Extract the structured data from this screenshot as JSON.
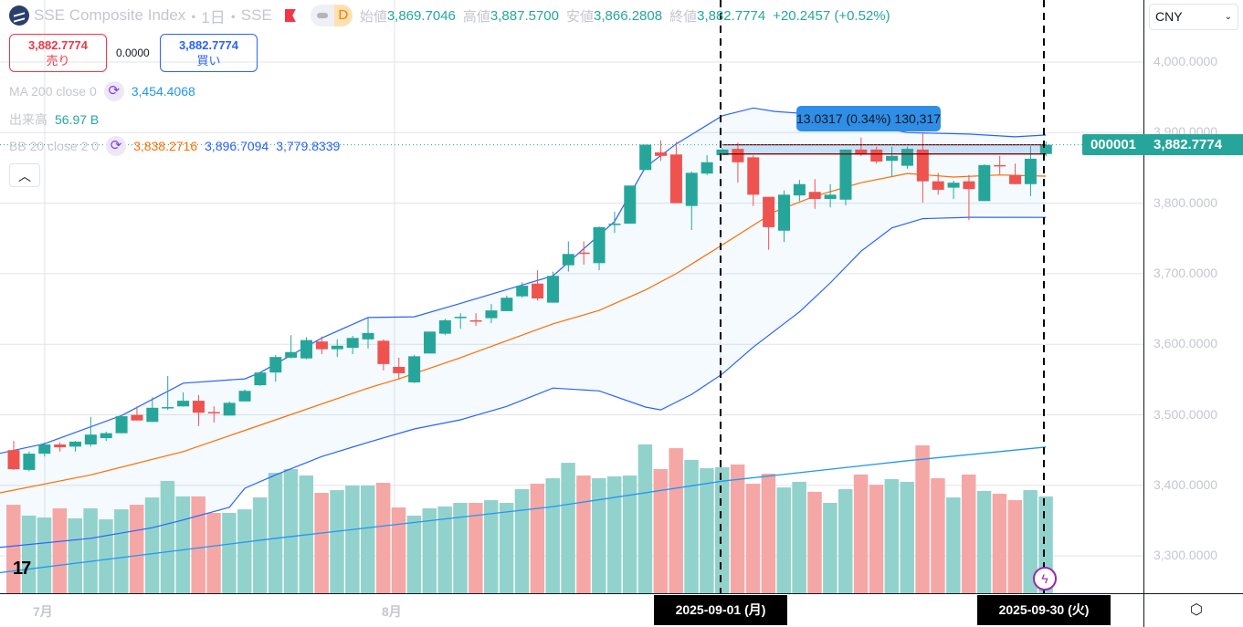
{
  "header": {
    "title": "SSE Composite Index",
    "interval": "1日",
    "exchange": "SSE",
    "badge": "D",
    "sep": "・",
    "open_label": "始値",
    "open": "3,869.7046",
    "high_label": "高値",
    "high": "3,887.5700",
    "low_label": "安値",
    "low": "3,866.2808",
    "close_label": "終値",
    "close": "3,882.7774",
    "change": "+20.2457 (+0.52%)"
  },
  "trade": {
    "sell_price": "3,882.7774",
    "sell_label": "売り",
    "spread": "0.0000",
    "buy_price": "3,882.7774",
    "buy_label": "買い"
  },
  "indicators": {
    "ma_name": "MA 200 close 0",
    "ma_value": "3,454.4068",
    "vol_name": "出来高",
    "vol_value": "56.97 B",
    "bb_name": "BB 20 close 2 0",
    "bb_mid": "3,838.2716",
    "bb_upper": "3,896.7094",
    "bb_lower": "3,779.8339"
  },
  "currency": "CNY",
  "price_axis": [
    "4,000.0000",
    "3,900.0000",
    "3,800.0000",
    "3,700.0000",
    "3,600.0000",
    "3,500.0000",
    "3,400.0000",
    "3,300.0000"
  ],
  "last_price": {
    "symbol": "000001",
    "value": "3,882.7774"
  },
  "measure": {
    "text": "13.0317 (0.34%) 130,317",
    "from": 3869.7457,
    "to": 3882.7774,
    "start_bar": 46,
    "end_bar": 67
  },
  "time_axis": {
    "jul": "7月",
    "aug": "8月",
    "cursor_start": "2025-09-01 (月)",
    "cursor_end": "2025-09-30 (火)"
  },
  "colors": {
    "up": "#26a69a",
    "down": "#ef5350",
    "bb": "#2962ff",
    "mid": "#ff6d00",
    "ma": "#2196f3"
  },
  "chart_data": {
    "type": "candlestick",
    "title": "SSE Composite Index 1D",
    "ylim": [
      3250,
      4080
    ],
    "ohlc": [
      [
        3450,
        3463,
        3422,
        3423
      ],
      [
        3422,
        3448,
        3420,
        3445
      ],
      [
        3445,
        3461,
        3441,
        3458
      ],
      [
        3458,
        3461,
        3448,
        3454
      ],
      [
        3455,
        3463,
        3448,
        3462
      ],
      [
        3458,
        3497,
        3455,
        3472
      ],
      [
        3467,
        3476,
        3463,
        3474
      ],
      [
        3474,
        3500,
        3474,
        3498
      ],
      [
        3500,
        3512,
        3492,
        3492
      ],
      [
        3490,
        3525,
        3490,
        3510
      ],
      [
        3510,
        3555,
        3507,
        3511
      ],
      [
        3512,
        3532,
        3512,
        3520
      ],
      [
        3520,
        3528,
        3484,
        3503
      ],
      [
        3504,
        3512,
        3489,
        3503
      ],
      [
        3499,
        3519,
        3499,
        3517
      ],
      [
        3519,
        3536,
        3519,
        3534
      ],
      [
        3542,
        3561,
        3541,
        3560
      ],
      [
        3560,
        3585,
        3547,
        3582
      ],
      [
        3581,
        3613,
        3580,
        3589
      ],
      [
        3580,
        3610,
        3579,
        3606
      ],
      [
        3604,
        3611,
        3586,
        3593
      ],
      [
        3593,
        3607,
        3582,
        3598
      ],
      [
        3595,
        3612,
        3586,
        3609
      ],
      [
        3607,
        3638,
        3594,
        3616
      ],
      [
        3605,
        3607,
        3563,
        3572
      ],
      [
        3568,
        3581,
        3550,
        3559
      ],
      [
        3546,
        3585,
        3545,
        3583
      ],
      [
        3587,
        3618,
        3587,
        3618
      ],
      [
        3615,
        3636,
        3613,
        3634
      ],
      [
        3638,
        3644,
        3622,
        3639
      ],
      [
        3634,
        3644,
        3626,
        3633
      ],
      [
        3637,
        3657,
        3630,
        3648
      ],
      [
        3647,
        3669,
        3647,
        3666
      ],
      [
        3668,
        3688,
        3666,
        3683
      ],
      [
        3686,
        3705,
        3662,
        3665
      ],
      [
        3659,
        3703,
        3659,
        3697
      ],
      [
        3712,
        3746,
        3703,
        3728
      ],
      [
        3730,
        3746,
        3713,
        3729
      ],
      [
        3715,
        3767,
        3705,
        3766
      ],
      [
        3770,
        3788,
        3758,
        3771
      ],
      [
        3771,
        3825,
        3771,
        3825
      ],
      [
        3847,
        3883,
        3847,
        3883
      ],
      [
        3872,
        3889,
        3860,
        3867
      ],
      [
        3869,
        3887,
        3800,
        3800
      ],
      [
        3796,
        3845,
        3762,
        3843
      ],
      [
        3842,
        3868,
        3840,
        3858
      ],
      [
        3868,
        3878,
        3868,
        3876
      ],
      [
        3877,
        3886,
        3829,
        3858
      ],
      [
        3865,
        3868,
        3796,
        3812
      ],
      [
        3809,
        3809,
        3734,
        3766
      ],
      [
        3761,
        3818,
        3745,
        3812
      ],
      [
        3811,
        3833,
        3803,
        3827
      ],
      [
        3816,
        3834,
        3792,
        3806
      ],
      [
        3806,
        3827,
        3794,
        3812
      ],
      [
        3805,
        3876,
        3797,
        3876
      ],
      [
        3876,
        3893,
        3867,
        3869
      ],
      [
        3876,
        3880,
        3856,
        3859
      ],
      [
        3860,
        3880,
        3838,
        3867
      ],
      [
        3853,
        3880,
        3849,
        3877
      ],
      [
        3876,
        3899,
        3801,
        3831
      ],
      [
        3831,
        3843,
        3812,
        3819
      ],
      [
        3822,
        3832,
        3806,
        3829
      ],
      [
        3831,
        3840,
        3776,
        3820
      ],
      [
        3803,
        3855,
        3803,
        3854
      ],
      [
        3854,
        3867,
        3841,
        3853
      ],
      [
        3840,
        3856,
        3827,
        3827
      ],
      [
        3827,
        3881,
        3810,
        3863
      ],
      [
        3869.7046,
        3887.57,
        3866.2808,
        3882.7774
      ]
    ],
    "volume_billions": [
      52.1,
      45.7,
      44.6,
      50.0,
      44.1,
      50.0,
      43.5,
      49.4,
      52.1,
      56.4,
      66.1,
      57.0,
      57.0,
      47.3,
      47.3,
      49.4,
      56.4,
      70.9,
      73.1,
      69.3,
      59.1,
      60.7,
      63.4,
      63.4,
      65.0,
      50.5,
      45.7,
      50.0,
      51.1,
      53.2,
      53.2,
      54.8,
      53.2,
      61.3,
      64.5,
      67.7,
      76.8,
      69.3,
      67.7,
      68.8,
      69.3,
      87.6,
      73.1,
      85.4,
      78.5,
      73.6,
      74.2,
      75.8,
      64.5,
      70.4,
      62.3,
      65.6,
      59.7,
      53.2,
      61.3,
      69.9,
      63.9,
      67.2,
      65.6,
      87.1,
      67.7,
      56.4,
      69.9,
      60.2,
      58.6,
      54.8,
      60.7,
      56.97
    ],
    "bb_upper": [
      [
        -1,
        3445
      ],
      [
        2,
        3459
      ],
      [
        7,
        3499
      ],
      [
        11,
        3545
      ],
      [
        15,
        3551
      ],
      [
        16,
        3560
      ],
      [
        20,
        3609
      ],
      [
        23,
        3638
      ],
      [
        26,
        3639
      ],
      [
        29,
        3658
      ],
      [
        33,
        3684
      ],
      [
        35,
        3697
      ],
      [
        39,
        3774
      ],
      [
        41,
        3851
      ],
      [
        43,
        3884
      ],
      [
        46,
        3924
      ],
      [
        48,
        3935
      ],
      [
        49.4,
        3930
      ],
      [
        52,
        3926
      ],
      [
        55,
        3913
      ],
      [
        58,
        3900
      ],
      [
        62,
        3898
      ],
      [
        65,
        3894
      ],
      [
        67,
        3896.7094
      ]
    ],
    "bb_mid": [
      [
        -1,
        3389
      ],
      [
        5,
        3415
      ],
      [
        11,
        3448
      ],
      [
        17,
        3493
      ],
      [
        23,
        3538
      ],
      [
        25,
        3551
      ],
      [
        29,
        3581
      ],
      [
        35,
        3629
      ],
      [
        38,
        3648
      ],
      [
        41,
        3677
      ],
      [
        43,
        3700
      ],
      [
        46,
        3741
      ],
      [
        49.4,
        3788
      ],
      [
        52,
        3810
      ],
      [
        55,
        3829
      ],
      [
        58,
        3842
      ],
      [
        61,
        3837
      ],
      [
        64,
        3840
      ],
      [
        67,
        3838.2716
      ]
    ],
    "bb_lower": [
      [
        -1,
        3312
      ],
      [
        5,
        3325
      ],
      [
        9,
        3340
      ],
      [
        11,
        3351
      ],
      [
        14,
        3369
      ],
      [
        15,
        3396
      ],
      [
        17,
        3415
      ],
      [
        20,
        3441
      ],
      [
        23,
        3461
      ],
      [
        26,
        3480
      ],
      [
        29,
        3493
      ],
      [
        32,
        3512
      ],
      [
        35,
        3538
      ],
      [
        38,
        3534
      ],
      [
        41,
        3511
      ],
      [
        42,
        3507
      ],
      [
        44,
        3529
      ],
      [
        46,
        3558
      ],
      [
        48,
        3596
      ],
      [
        51,
        3646
      ],
      [
        53,
        3687
      ],
      [
        55,
        3732
      ],
      [
        57,
        3765
      ],
      [
        59,
        3778
      ],
      [
        62,
        3780
      ],
      [
        67,
        3779.8339
      ]
    ],
    "ma200": [
      [
        -1,
        3276
      ],
      [
        17,
        3325
      ],
      [
        35,
        3370
      ],
      [
        46,
        3406
      ],
      [
        58,
        3435
      ],
      [
        67,
        3454.4068
      ]
    ]
  }
}
